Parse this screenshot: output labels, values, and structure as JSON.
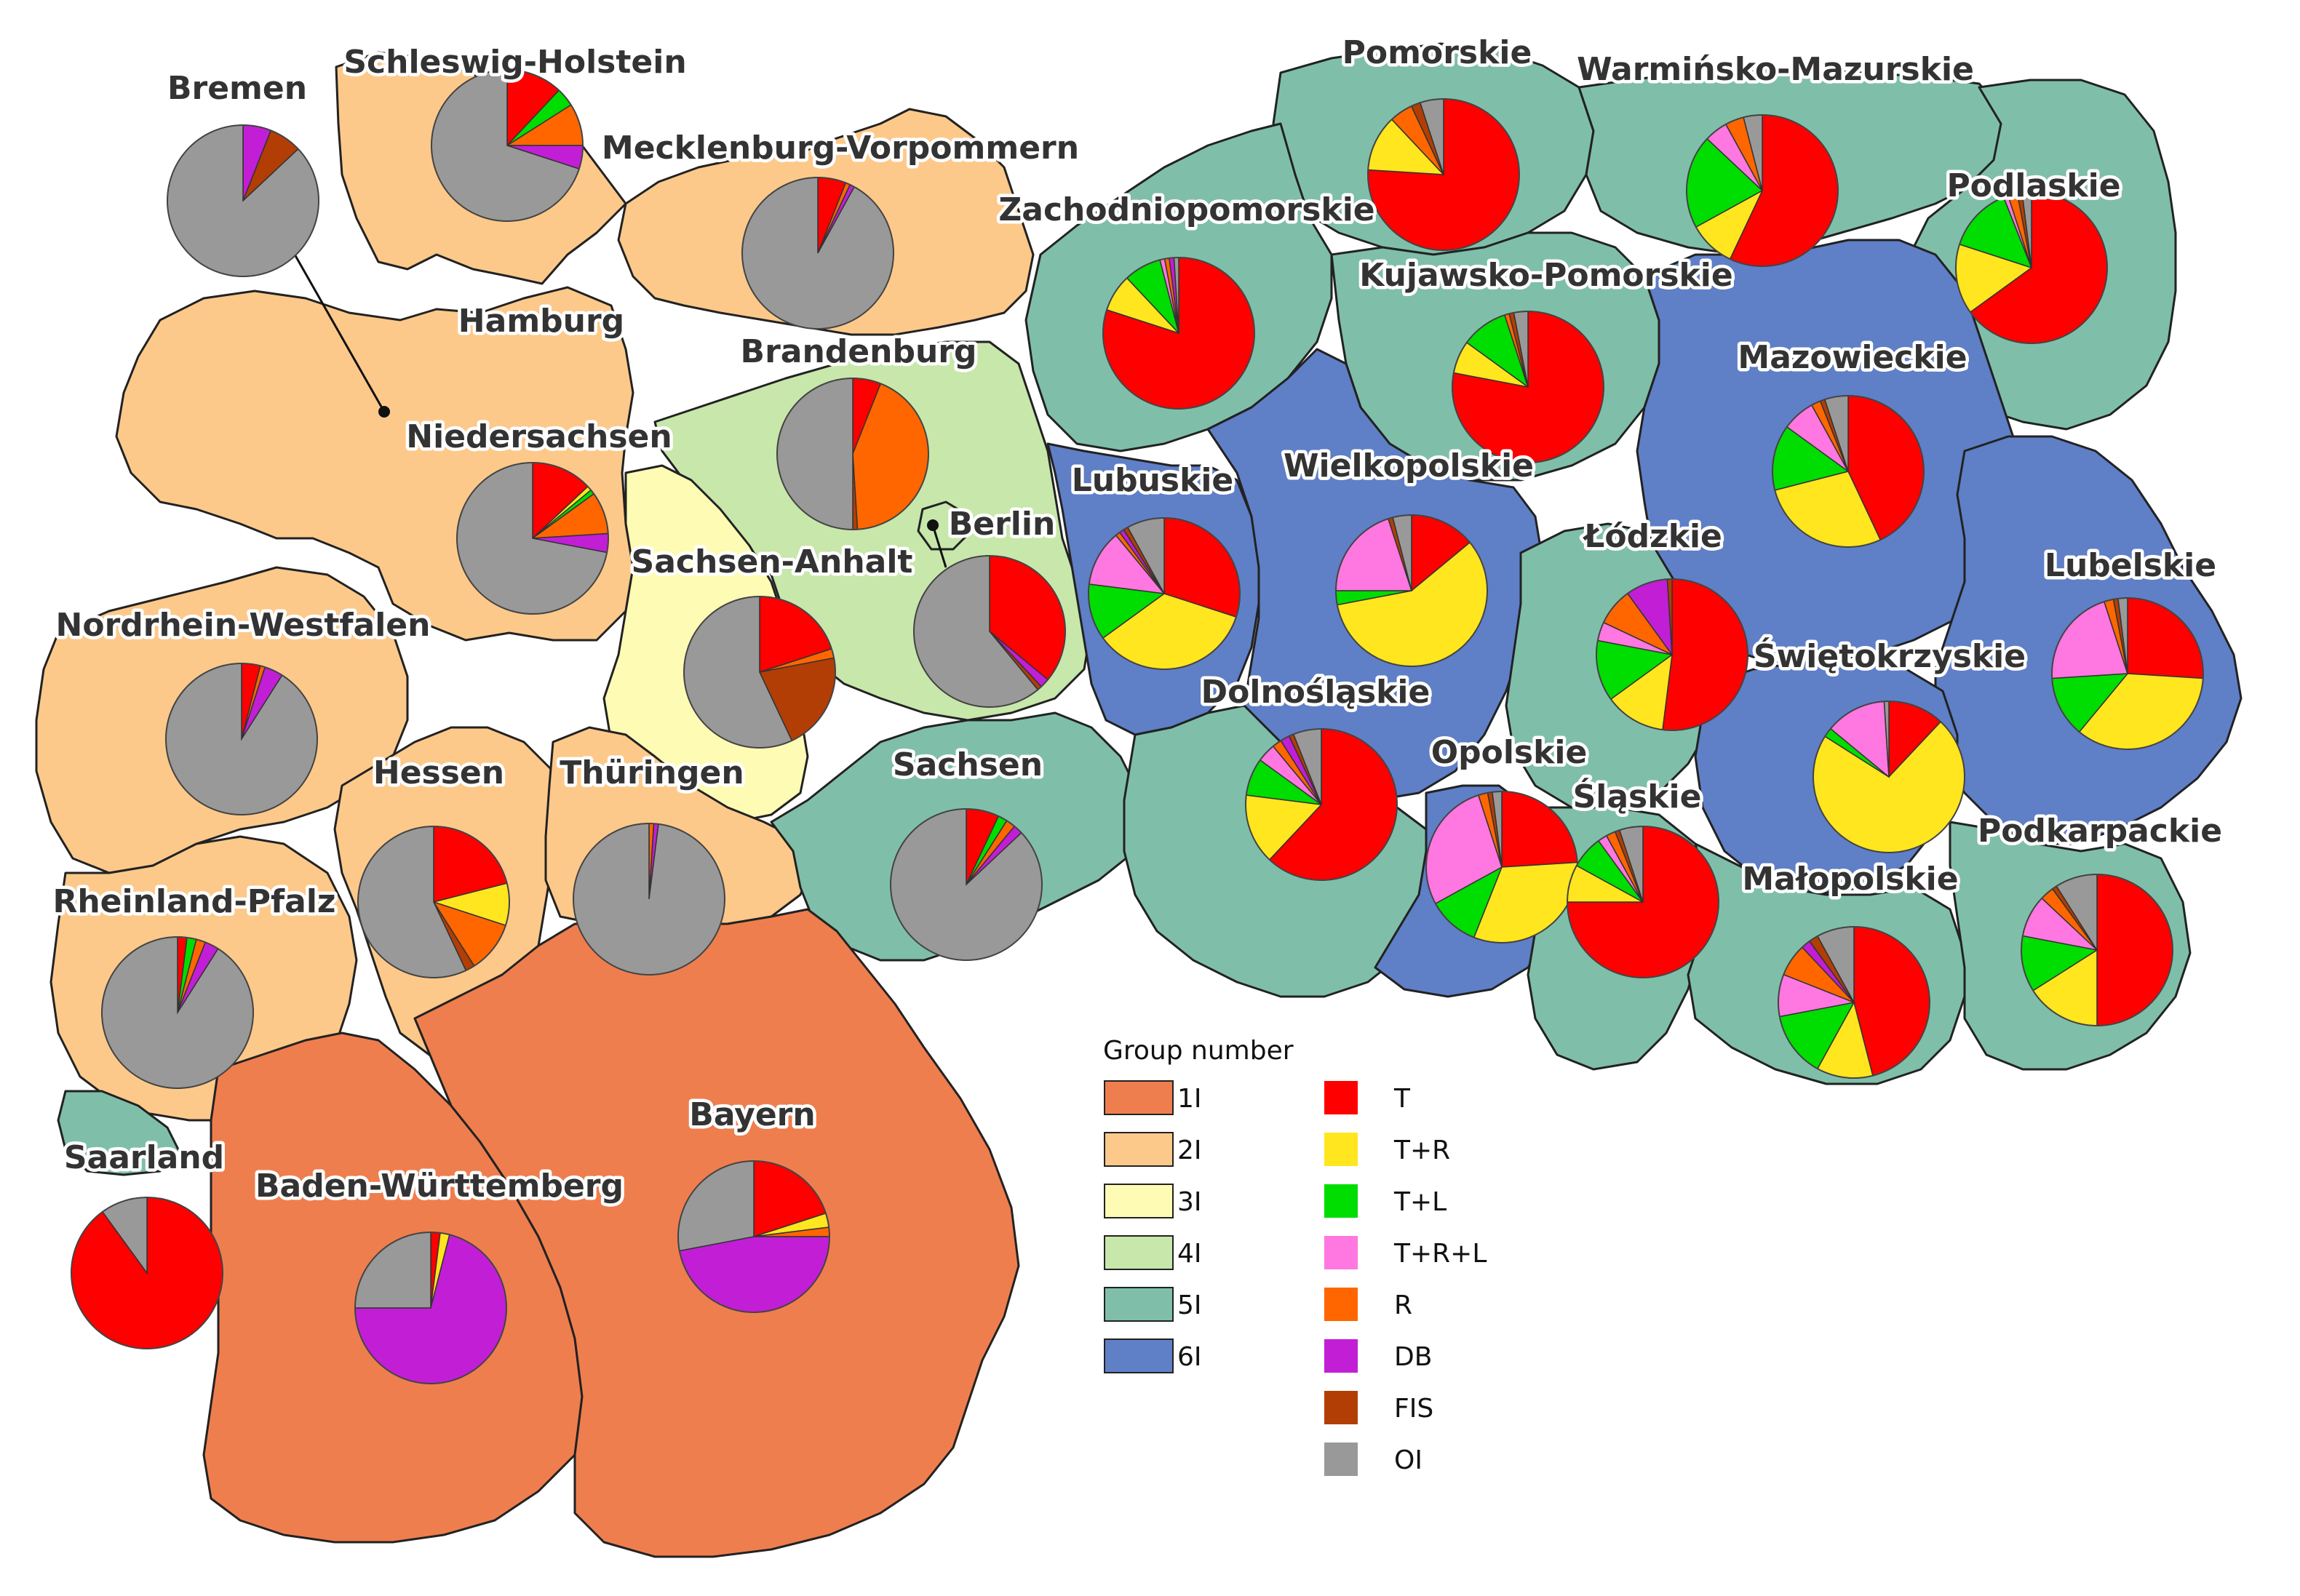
{
  "legend": {
    "groups_title": "Group number",
    "groups": [
      {
        "key": "1I",
        "label": "1I",
        "color": "#ef7e4e"
      },
      {
        "key": "2I",
        "label": "2I",
        "color": "#fdc98a"
      },
      {
        "key": "3I",
        "label": "3I",
        "color": "#fefcb4"
      },
      {
        "key": "4I",
        "label": "4I",
        "color": "#c8e7ab"
      },
      {
        "key": "5I",
        "label": "5I",
        "color": "#7fbfa9"
      },
      {
        "key": "6I",
        "label": "6I",
        "color": "#5f7fc7"
      }
    ],
    "categories": [
      {
        "key": "T",
        "label": "T",
        "color": "#ff0000"
      },
      {
        "key": "TR",
        "label": "T+R",
        "color": "#ffe61e"
      },
      {
        "key": "TL",
        "label": "T+L",
        "color": "#00dd00"
      },
      {
        "key": "TRL",
        "label": "T+R+L",
        "color": "#ff77e0"
      },
      {
        "key": "R",
        "label": "R",
        "color": "#ff6600"
      },
      {
        "key": "DB",
        "label": "DB",
        "color": "#c21ed6"
      },
      {
        "key": "FIS",
        "label": "FIS",
        "color": "#b23e05"
      },
      {
        "key": "OI",
        "label": "OI",
        "color": "#999999"
      }
    ]
  },
  "regions": [
    {
      "name": "Schleswig-Holstein",
      "group": "2I",
      "shares": {
        "T": 12,
        "TL": 4,
        "R": 9,
        "DB": 5,
        "OI": 70
      }
    },
    {
      "name": "Bremen",
      "group": "2I",
      "shares": {
        "DB": 6,
        "FIS": 7,
        "OI": 87
      }
    },
    {
      "name": "Mecklenburg-Vorpommern",
      "group": "2I",
      "shares": {
        "T": 6,
        "R": 1,
        "DB": 1,
        "OI": 92
      }
    },
    {
      "name": "Hamburg",
      "group": "2I",
      "shares": {}
    },
    {
      "name": "Niedersachsen",
      "group": "2I",
      "shares": {
        "T": 13,
        "TR": 1,
        "TL": 1,
        "R": 9,
        "DB": 4,
        "OI": 72
      }
    },
    {
      "name": "Brandenburg",
      "group": "4I",
      "shares": {
        "T": 6,
        "FIS": 1,
        "R": 43,
        "OI": 50
      }
    },
    {
      "name": "Berlin",
      "group": "4I",
      "shares": {
        "T": 36,
        "DB": 2,
        "FIS": 1,
        "OI": 61
      }
    },
    {
      "name": "Sachsen-Anhalt",
      "group": "3I",
      "shares": {
        "T": 20,
        "R": 2,
        "FIS": 21,
        "OI": 57
      }
    },
    {
      "name": "Nordrhein-Westfalen",
      "group": "2I",
      "shares": {
        "T": 4,
        "R": 1,
        "DB": 4,
        "OI": 91
      }
    },
    {
      "name": "Hessen",
      "group": "2I",
      "shares": {
        "T": 21,
        "TR": 9,
        "R": 11,
        "FIS": 2,
        "OI": 57
      }
    },
    {
      "name": "Thüringen",
      "group": "2I",
      "shares": {
        "R": 1,
        "DB": 1,
        "OI": 98
      }
    },
    {
      "name": "Sachsen",
      "group": "5I",
      "shares": {
        "T": 7,
        "TL": 2,
        "R": 2,
        "DB": 2,
        "OI": 87
      }
    },
    {
      "name": "Rheinland-Pfalz",
      "group": "2I",
      "shares": {
        "T": 2,
        "TL": 2,
        "R": 2,
        "DB": 3,
        "OI": 91
      }
    },
    {
      "name": "Saarland",
      "group": "5I",
      "shares": {
        "T": 90,
        "OI": 10
      }
    },
    {
      "name": "Baden-Württemberg",
      "group": "1I",
      "shares": {
        "T": 2,
        "TR": 2,
        "DB": 71,
        "OI": 25
      }
    },
    {
      "name": "Bayern",
      "group": "1I",
      "shares": {
        "T": 20,
        "TR": 3,
        "R": 2,
        "DB": 47,
        "OI": 28
      }
    },
    {
      "name": "Pomorskie",
      "group": "5I",
      "shares": {
        "T": 76,
        "TR": 12,
        "R": 5,
        "FIS": 2,
        "OI": 5
      }
    },
    {
      "name": "Warmińsko-Mazurskie",
      "group": "5I",
      "shares": {
        "T": 57,
        "TR": 10,
        "TL": 20,
        "TRL": 5,
        "R": 4,
        "OI": 4
      }
    },
    {
      "name": "Zachodniopomorskie",
      "group": "5I",
      "shares": {
        "T": 80,
        "TR": 8,
        "TL": 8,
        "TRL": 1,
        "R": 1,
        "DB": 1,
        "OI": 1
      }
    },
    {
      "name": "Podlaskie",
      "group": "5I",
      "shares": {
        "T": 65,
        "TR": 15,
        "TL": 14,
        "TRL": 1,
        "R": 2,
        "FIS": 1,
        "OI": 2
      }
    },
    {
      "name": "Kujawsko-Pomorskie",
      "group": "5I",
      "shares": {
        "T": 78,
        "TR": 7,
        "TL": 10,
        "R": 1,
        "FIS": 1,
        "OI": 3
      }
    },
    {
      "name": "Mazowieckie",
      "group": "6I",
      "shares": {
        "T": 43,
        "TR": 28,
        "TL": 14,
        "TRL": 7,
        "R": 2,
        "FIS": 1,
        "OI": 5
      }
    },
    {
      "name": "Lubuskie",
      "group": "6I",
      "shares": {
        "T": 30,
        "TR": 35,
        "TL": 12,
        "TRL": 12,
        "R": 1,
        "DB": 1,
        "FIS": 1,
        "OI": 8
      }
    },
    {
      "name": "Wielkopolskie",
      "group": "6I",
      "shares": {
        "T": 14,
        "TR": 58,
        "TL": 3,
        "TRL": 20,
        "FIS": 1,
        "OI": 4
      }
    },
    {
      "name": "Łódzkie",
      "group": "5I",
      "shares": {
        "T": 52,
        "TR": 13,
        "TL": 13,
        "TRL": 4,
        "R": 8,
        "DB": 9,
        "FIS": 1
      }
    },
    {
      "name": "Lubelskie",
      "group": "6I",
      "shares": {
        "T": 26,
        "TR": 35,
        "TL": 13,
        "TRL": 21,
        "R": 2,
        "FIS": 1,
        "OI": 2
      }
    },
    {
      "name": "Świętokrzyskie",
      "group": "6I",
      "shares": {
        "T": 12,
        "TR": 72,
        "TL": 2,
        "TRL": 13,
        "OI": 1
      }
    },
    {
      "name": "Dolnośląskie",
      "group": "5I",
      "shares": {
        "T": 62,
        "TR": 15,
        "TL": 8,
        "TRL": 4,
        "R": 2,
        "DB": 2,
        "FIS": 1,
        "OI": 6
      }
    },
    {
      "name": "Opolskie",
      "group": "6I",
      "shares": {
        "T": 24,
        "TR": 32,
        "TL": 11,
        "TRL": 28,
        "R": 2,
        "FIS": 1,
        "OI": 2
      }
    },
    {
      "name": "Śląskie",
      "group": "5I",
      "shares": {
        "T": 75,
        "TR": 8,
        "TL": 7,
        "TRL": 2,
        "R": 2,
        "FIS": 1,
        "OI": 5
      }
    },
    {
      "name": "Małopolskie",
      "group": "5I",
      "shares": {
        "T": 46,
        "TR": 12,
        "TL": 14,
        "TRL": 9,
        "R": 7,
        "DB": 2,
        "FIS": 2,
        "OI": 8
      }
    },
    {
      "name": "Podkarpackie",
      "group": "5I",
      "shares": {
        "T": 50,
        "TR": 16,
        "TL": 12,
        "TRL": 9,
        "R": 3,
        "FIS": 1,
        "OI": 9
      }
    }
  ]
}
